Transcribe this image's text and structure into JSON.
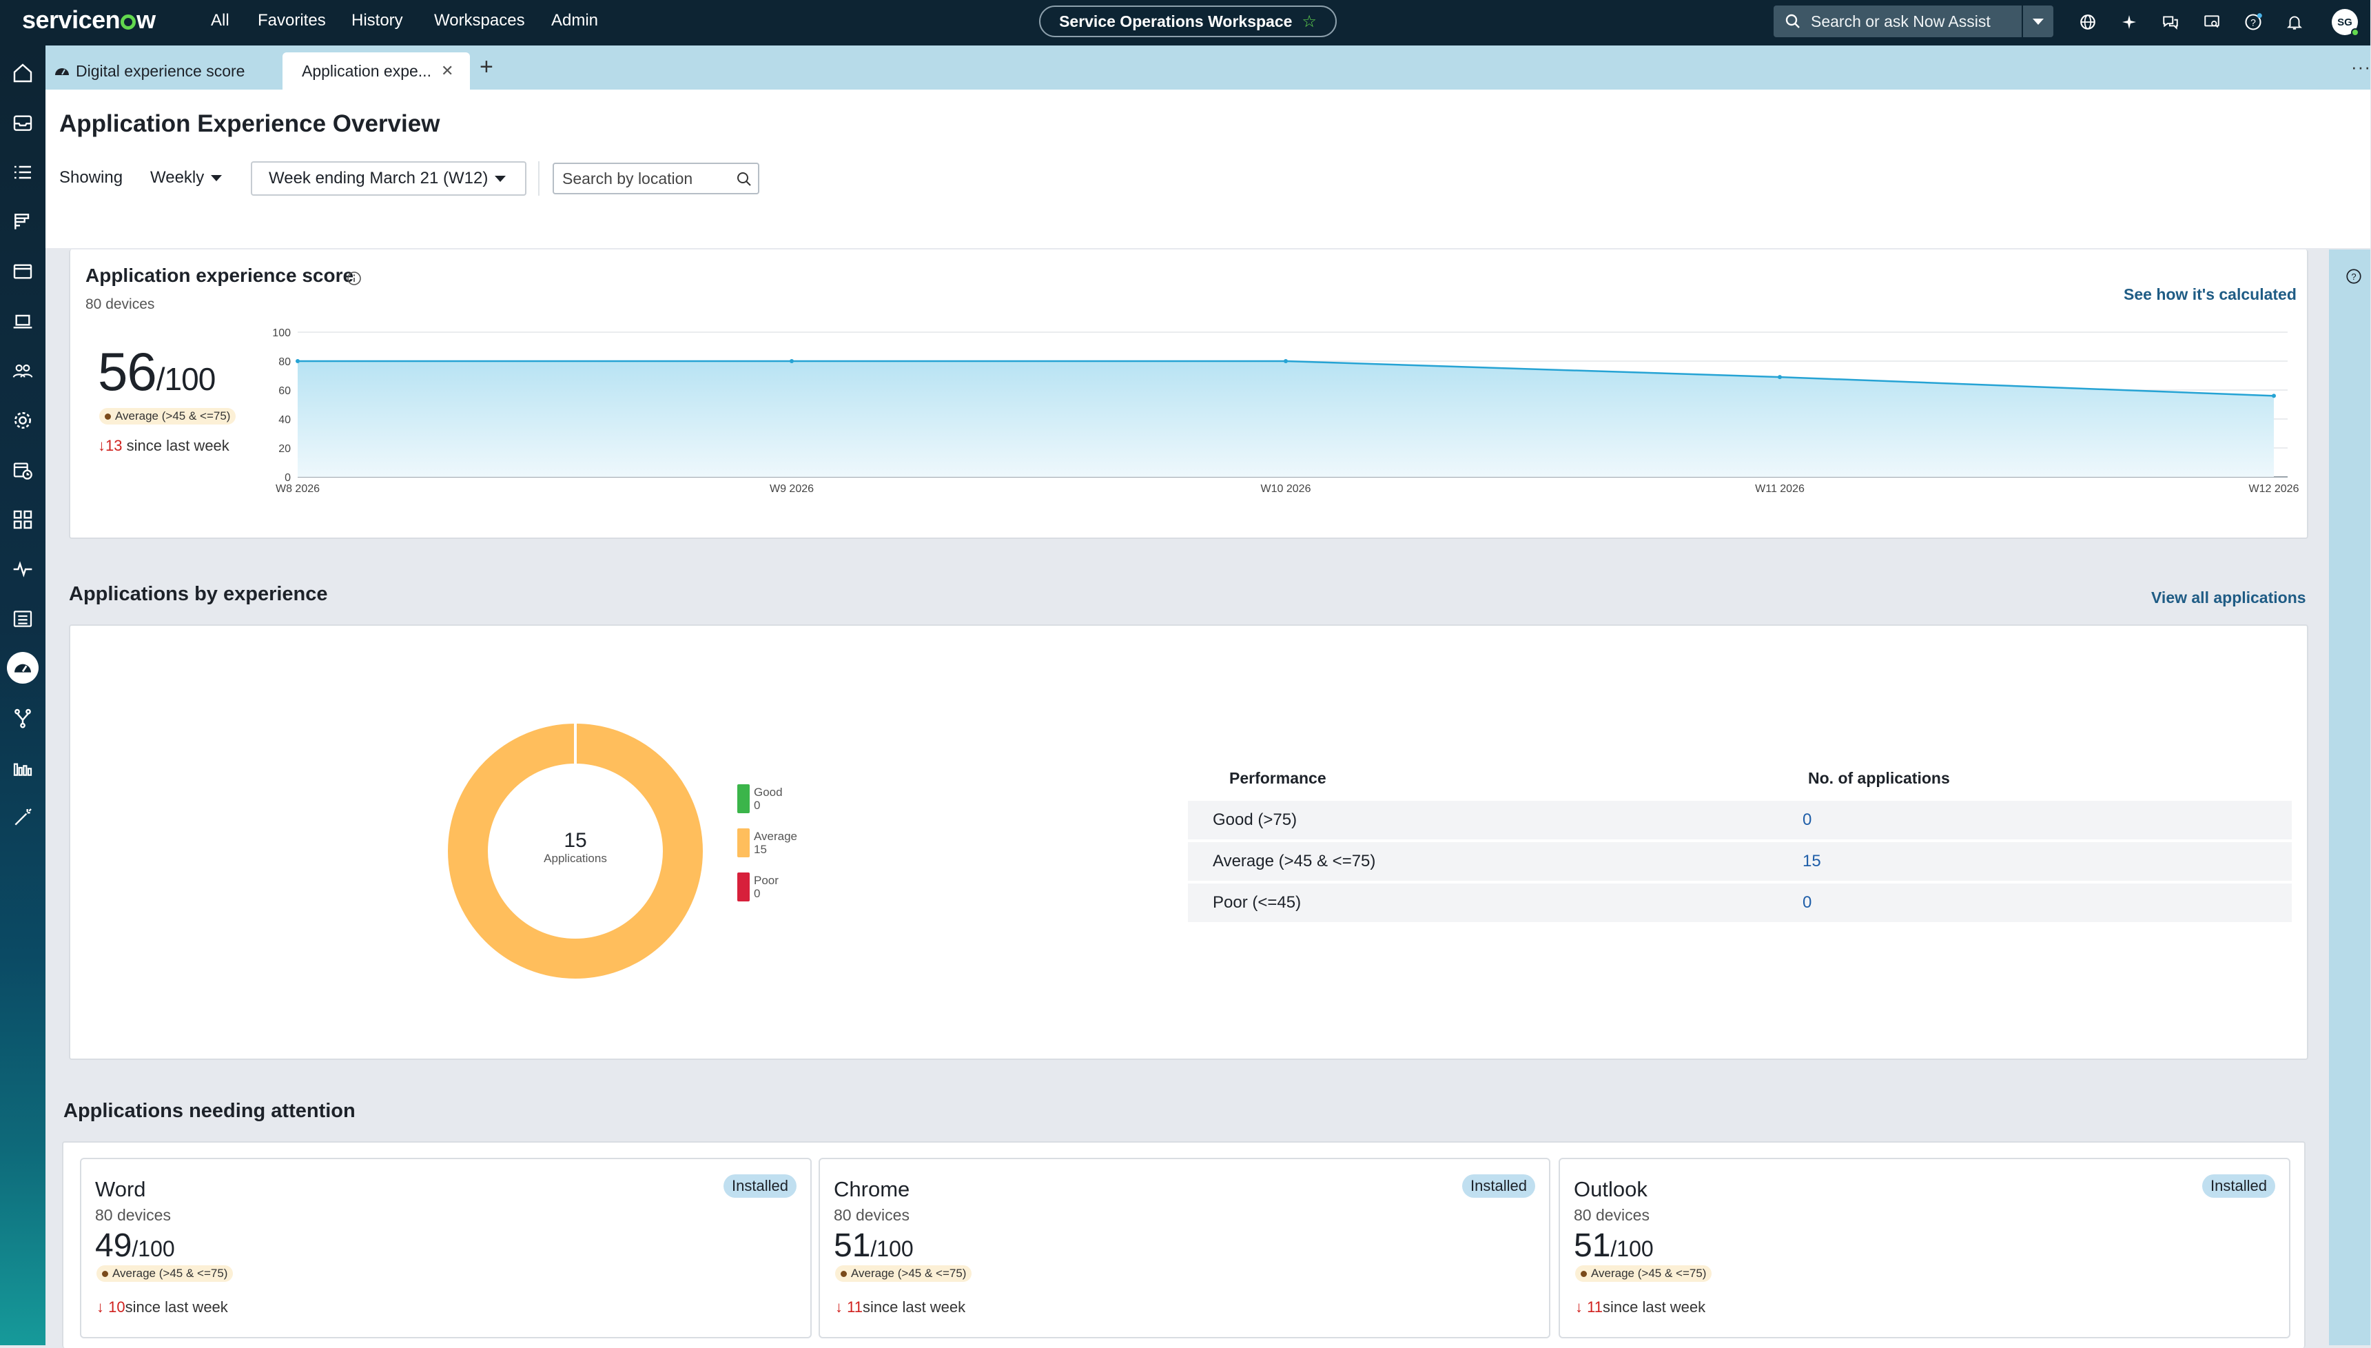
{
  "nav": {
    "logo_pre": "servicen",
    "logo_post": "w",
    "menu": [
      "All",
      "Favorites",
      "History",
      "Workspaces",
      "Admin"
    ],
    "workspace": "Service Operations Workspace",
    "search_placeholder": "Search or ask Now Assist",
    "avatar_initials": "SG"
  },
  "tabs": [
    {
      "label": "Digital experience score"
    },
    {
      "label": "Application expe..."
    }
  ],
  "header": {
    "title": "Application Experience Overview",
    "showing_label": "Showing",
    "period": "Weekly",
    "week": "Week ending March 21 (W12)",
    "location_placeholder": "Search by location"
  },
  "score_card": {
    "title": "Application experience score",
    "devices": "80 devices",
    "link": "See how it's calculated",
    "score": "56",
    "score_max": "/100",
    "badge": "Average (>45 & <=75)",
    "delta_value": "13",
    "delta_text": "since last week"
  },
  "chart_data": {
    "type": "area",
    "x": [
      "W8 2026",
      "W9 2026",
      "W10 2026",
      "W11 2026",
      "W12 2026"
    ],
    "y_ticks": [
      0,
      20,
      40,
      60,
      80,
      100
    ],
    "ylim": [
      0,
      100
    ],
    "series": [
      {
        "values": [
          80,
          80,
          80,
          69,
          56
        ]
      }
    ],
    "colors": {
      "line": "#26a3d4",
      "fill_top": "#b8e3f3",
      "fill_bottom": "#eef8fc"
    }
  },
  "apps_by_experience": {
    "title": "Applications by experience",
    "link": "View all applications",
    "donut": {
      "center_value": "15",
      "center_label": "Applications",
      "slices": [
        {
          "label": "Good",
          "value": 0,
          "color": "#3bb54a"
        },
        {
          "label": "Average",
          "value": 15,
          "color": "#ffbe5c"
        },
        {
          "label": "Poor",
          "value": 0,
          "color": "#d7203b"
        }
      ]
    },
    "table": {
      "headers": [
        "Performance",
        "No. of applications"
      ],
      "rows": [
        {
          "label": "Good (>75)",
          "value": "0"
        },
        {
          "label": "Average (>45 & <=75)",
          "value": "15"
        },
        {
          "label": "Poor (<=45)",
          "value": "0"
        }
      ]
    }
  },
  "attention": {
    "title": "Applications needing attention",
    "apps": [
      {
        "name": "Word",
        "devices": "80 devices",
        "score": "49",
        "max": "/100",
        "badge": "Average (>45 & <=75)",
        "delta": "10",
        "delta_text": "since last week",
        "status": "Installed"
      },
      {
        "name": "Chrome",
        "devices": "80 devices",
        "score": "51",
        "max": "/100",
        "badge": "Average (>45 & <=75)",
        "delta": "11",
        "delta_text": "since last week",
        "status": "Installed"
      },
      {
        "name": "Outlook",
        "devices": "80 devices",
        "score": "51",
        "max": "/100",
        "badge": "Average (>45 & <=75)",
        "delta": "11",
        "delta_text": "since last week",
        "status": "Installed"
      }
    ]
  }
}
